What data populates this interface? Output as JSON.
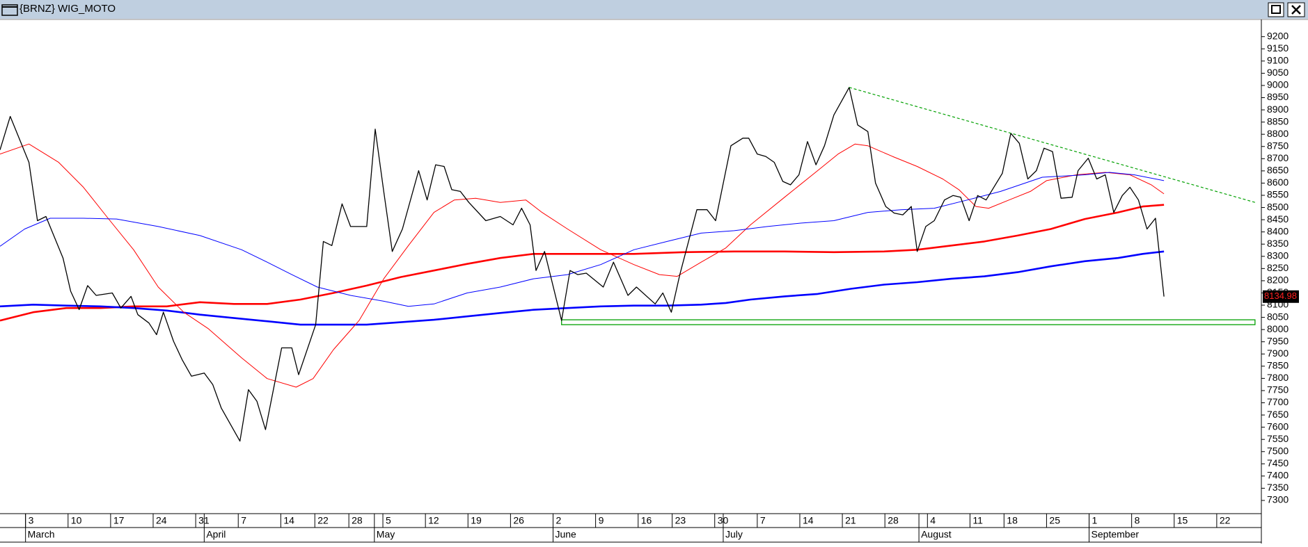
{
  "window_title": "{BRNZ} WIG_MOTO",
  "chart_data": {
    "type": "line",
    "xlim": [
      0,
      148
    ],
    "ylim": [
      7300,
      9200
    ],
    "yticks": [
      7300,
      7350,
      7400,
      7450,
      7500,
      7550,
      7600,
      7650,
      7700,
      7750,
      7800,
      7850,
      7900,
      7950,
      8000,
      8050,
      8100,
      8150,
      8200,
      8250,
      8300,
      8350,
      8400,
      8450,
      8500,
      8550,
      8600,
      8650,
      8700,
      8750,
      8800,
      8850,
      8900,
      8950,
      9000,
      9050,
      9100,
      9150,
      9200
    ],
    "xticks": [
      {
        "value": 3,
        "label": "3"
      },
      {
        "value": 8,
        "label": "10"
      },
      {
        "value": 13,
        "label": "17"
      },
      {
        "value": 18,
        "label": "24"
      },
      {
        "value": 23,
        "label": "31"
      },
      {
        "value": 28,
        "label": "7"
      },
      {
        "value": 33,
        "label": "14"
      },
      {
        "value": 37,
        "label": "22"
      },
      {
        "value": 41,
        "label": "28"
      },
      {
        "value": 45,
        "label": "5"
      },
      {
        "value": 50,
        "label": "12"
      },
      {
        "value": 55,
        "label": "19"
      },
      {
        "value": 60,
        "label": "26"
      },
      {
        "value": 65,
        "label": "2"
      },
      {
        "value": 70,
        "label": "9"
      },
      {
        "value": 75,
        "label": "16"
      },
      {
        "value": 79,
        "label": "23"
      },
      {
        "value": 84,
        "label": "30"
      },
      {
        "value": 89,
        "label": "7"
      },
      {
        "value": 94,
        "label": "14"
      },
      {
        "value": 99,
        "label": "21"
      },
      {
        "value": 104,
        "label": "28"
      },
      {
        "value": 109,
        "label": "4"
      },
      {
        "value": 114,
        "label": "11"
      },
      {
        "value": 118,
        "label": "18"
      },
      {
        "value": 123,
        "label": "25"
      },
      {
        "value": 128,
        "label": "1"
      },
      {
        "value": 133,
        "label": "8"
      },
      {
        "value": 138,
        "label": "15"
      },
      {
        "value": 143,
        "label": "22"
      }
    ],
    "months": [
      {
        "value": 3,
        "label": "March"
      },
      {
        "value": 24,
        "label": "April"
      },
      {
        "value": 44,
        "label": "May"
      },
      {
        "value": 65,
        "label": "June"
      },
      {
        "value": 85,
        "label": "July"
      },
      {
        "value": 108,
        "label": "August"
      },
      {
        "value": 128,
        "label": "September"
      }
    ],
    "series": [
      {
        "color": "#000000",
        "width": 1.3,
        "x": [
          0,
          1.2,
          3.4,
          4.4,
          5.4,
          7.4,
          8.3,
          9.3,
          10.3,
          11.3,
          13.2,
          14.2,
          15.4,
          16.2,
          17.5,
          18.4,
          19.2,
          20.4,
          21.4,
          22.5,
          24.0,
          25.0,
          26.0,
          28.2,
          29.2,
          30.2,
          31.2,
          33.1,
          34.3,
          35.1,
          37.1,
          38.0,
          39.0,
          40.2,
          41.2,
          43.1,
          44.1,
          45.1,
          46.1,
          47.3,
          49.2,
          50.2,
          51.2,
          52.2,
          53.1,
          54.1,
          55.1,
          57.1,
          58.8,
          60.3,
          61.3,
          62.3,
          63.0,
          64.0,
          66.0,
          67.0,
          67.9,
          68.9,
          70.9,
          72.1,
          73.8,
          74.8,
          77.0,
          77.9,
          78.9,
          79.9,
          81.9,
          83.1,
          84.1,
          85.9,
          87.3,
          88.0,
          89.0,
          90.0,
          91.0,
          92.0,
          92.9,
          93.9,
          94.9,
          95.9,
          96.9,
          98.0,
          99.8,
          100.8,
          102.0,
          102.9,
          104.1,
          105.1,
          106.1,
          107.1,
          107.8,
          108.8,
          109.8,
          111.0,
          112.0,
          112.9,
          113.9,
          114.9,
          115.9,
          117.8,
          118.8,
          119.8,
          120.8,
          121.8,
          122.7,
          123.7,
          124.7,
          126.0,
          126.7,
          127.9,
          128.9,
          129.9,
          130.9,
          131.9,
          132.8,
          133.8,
          134.8,
          135.8,
          136.8
        ],
        "values": [
          8736,
          8873,
          8685,
          8446,
          8463,
          8293,
          8157,
          8082,
          8180,
          8140,
          8150,
          8088,
          8136,
          8061,
          8027,
          7979,
          8071,
          7952,
          7877,
          7809,
          7822,
          7775,
          7679,
          7543,
          7754,
          7706,
          7590,
          7925,
          7925,
          7815,
          8020,
          8361,
          8344,
          8515,
          8422,
          8422,
          8821,
          8565,
          8320,
          8412,
          8651,
          8531,
          8675,
          8668,
          8573,
          8566,
          8521,
          8446,
          8463,
          8429,
          8497,
          8429,
          8242,
          8320,
          8037,
          8242,
          8225,
          8231,
          8174,
          8276,
          8140,
          8174,
          8105,
          8150,
          8071,
          8225,
          8491,
          8491,
          8446,
          8753,
          8784,
          8784,
          8719,
          8709,
          8685,
          8607,
          8593,
          8634,
          8770,
          8675,
          8753,
          8879,
          8992,
          8838,
          8811,
          8600,
          8504,
          8477,
          8470,
          8504,
          8320,
          8422,
          8446,
          8531,
          8549,
          8542,
          8446,
          8549,
          8531,
          8640,
          8804,
          8763,
          8617,
          8651,
          8743,
          8729,
          8538,
          8542,
          8651,
          8702,
          8617,
          8634,
          8480,
          8549,
          8583,
          8531,
          8412,
          8456,
          8134.98
        ]
      },
      {
        "color": "#ff0000",
        "width": 1,
        "x": [
          0,
          3.4,
          6.9,
          9.8,
          12.7,
          15.7,
          18.6,
          21.6,
          24.5,
          28.4,
          31.4,
          34.8,
          36.8,
          39.2,
          42.2,
          45.1,
          48.0,
          51.0,
          53.4,
          55.9,
          58.8,
          61.8,
          63.7,
          66.7,
          70.6,
          74.5,
          77.5,
          79.6,
          82.4,
          85.3,
          88.2,
          92.2,
          96.1,
          98.5,
          100.5,
          102.0,
          104.9,
          107.8,
          110.8,
          112.7,
          114.7,
          116.2,
          118.6,
          121.1,
          123.0,
          126.5,
          129.9,
          132.8,
          135.3,
          136.8
        ],
        "values": [
          8719,
          8760,
          8685,
          8583,
          8456,
          8327,
          8174,
          8071,
          8003,
          7884,
          7799,
          7764,
          7799,
          7918,
          8037,
          8208,
          8344,
          8480,
          8531,
          8538,
          8521,
          8531,
          8480,
          8412,
          8327,
          8266,
          8225,
          8218,
          8276,
          8334,
          8429,
          8542,
          8651,
          8719,
          8760,
          8753,
          8709,
          8668,
          8617,
          8573,
          8504,
          8497,
          8531,
          8566,
          8610,
          8634,
          8644,
          8634,
          8593,
          8556
        ]
      },
      {
        "color": "#0000ff",
        "width": 1,
        "x": [
          0,
          2.9,
          5.9,
          9.8,
          13.7,
          18.6,
          23.5,
          28.4,
          31.4,
          34.3,
          37.3,
          41.2,
          45.1,
          48.0,
          51.0,
          54.9,
          58.8,
          62.7,
          66.7,
          70.6,
          74.5,
          78.4,
          82.4,
          86.3,
          90.2,
          94.1,
          98.0,
          102.0,
          105.9,
          109.8,
          113.7,
          117.6,
          122.5,
          127.5,
          130.4,
          133.3,
          136.8
        ],
        "values": [
          8341,
          8412,
          8456,
          8456,
          8453,
          8422,
          8385,
          8327,
          8276,
          8225,
          8174,
          8140,
          8116,
          8095,
          8105,
          8150,
          8174,
          8208,
          8225,
          8266,
          8327,
          8361,
          8395,
          8405,
          8422,
          8436,
          8446,
          8480,
          8491,
          8497,
          8531,
          8566,
          8624,
          8634,
          8644,
          8634,
          8610
        ]
      },
      {
        "color": "#ff0000",
        "width": 2.6,
        "x": [
          0,
          3.9,
          7.8,
          11.8,
          15.7,
          19.6,
          23.5,
          27.5,
          31.4,
          35.3,
          39.2,
          43.1,
          47.1,
          51.0,
          54.9,
          58.8,
          62.7,
          68.6,
          74.5,
          80.4,
          86.3,
          92.2,
          98.0,
          103.9,
          107.8,
          111.8,
          115.7,
          119.6,
          123.5,
          127.5,
          131.4,
          134.3,
          136.8
        ],
        "values": [
          8037,
          8071,
          8088,
          8088,
          8095,
          8095,
          8112,
          8105,
          8105,
          8123,
          8150,
          8180,
          8215,
          8242,
          8269,
          8293,
          8310,
          8310,
          8310,
          8317,
          8320,
          8320,
          8317,
          8320,
          8327,
          8344,
          8361,
          8385,
          8412,
          8453,
          8480,
          8504,
          8511
        ]
      },
      {
        "color": "#0000ff",
        "width": 2.6,
        "x": [
          0,
          3.9,
          7.8,
          11.8,
          15.7,
          19.6,
          23.5,
          27.5,
          31.4,
          35.3,
          39.2,
          43.1,
          47.1,
          51.0,
          54.9,
          58.8,
          62.7,
          66.7,
          70.6,
          74.5,
          78.4,
          82.4,
          85.3,
          88.2,
          92.2,
          96.1,
          100.0,
          103.9,
          107.8,
          111.8,
          115.7,
          119.6,
          123.5,
          127.5,
          131.4,
          134.3,
          136.8
        ],
        "values": [
          8095,
          8102,
          8098,
          8095,
          8088,
          8078,
          8061,
          8047,
          8034,
          8020,
          8020,
          8020,
          8030,
          8040,
          8054,
          8068,
          8081,
          8088,
          8095,
          8098,
          8098,
          8102,
          8109,
          8123,
          8136,
          8146,
          8167,
          8184,
          8194,
          8208,
          8218,
          8235,
          8259,
          8280,
          8293,
          8310,
          8320
        ]
      }
    ],
    "trendline": {
      "x": [
        99.8,
        147.5
      ],
      "y": [
        8992,
        8521
      ],
      "color": "#00a000"
    },
    "support_box": {
      "x": [
        66,
        147.5
      ],
      "y": [
        8020,
        8040
      ],
      "color": "#00a000"
    }
  }
}
